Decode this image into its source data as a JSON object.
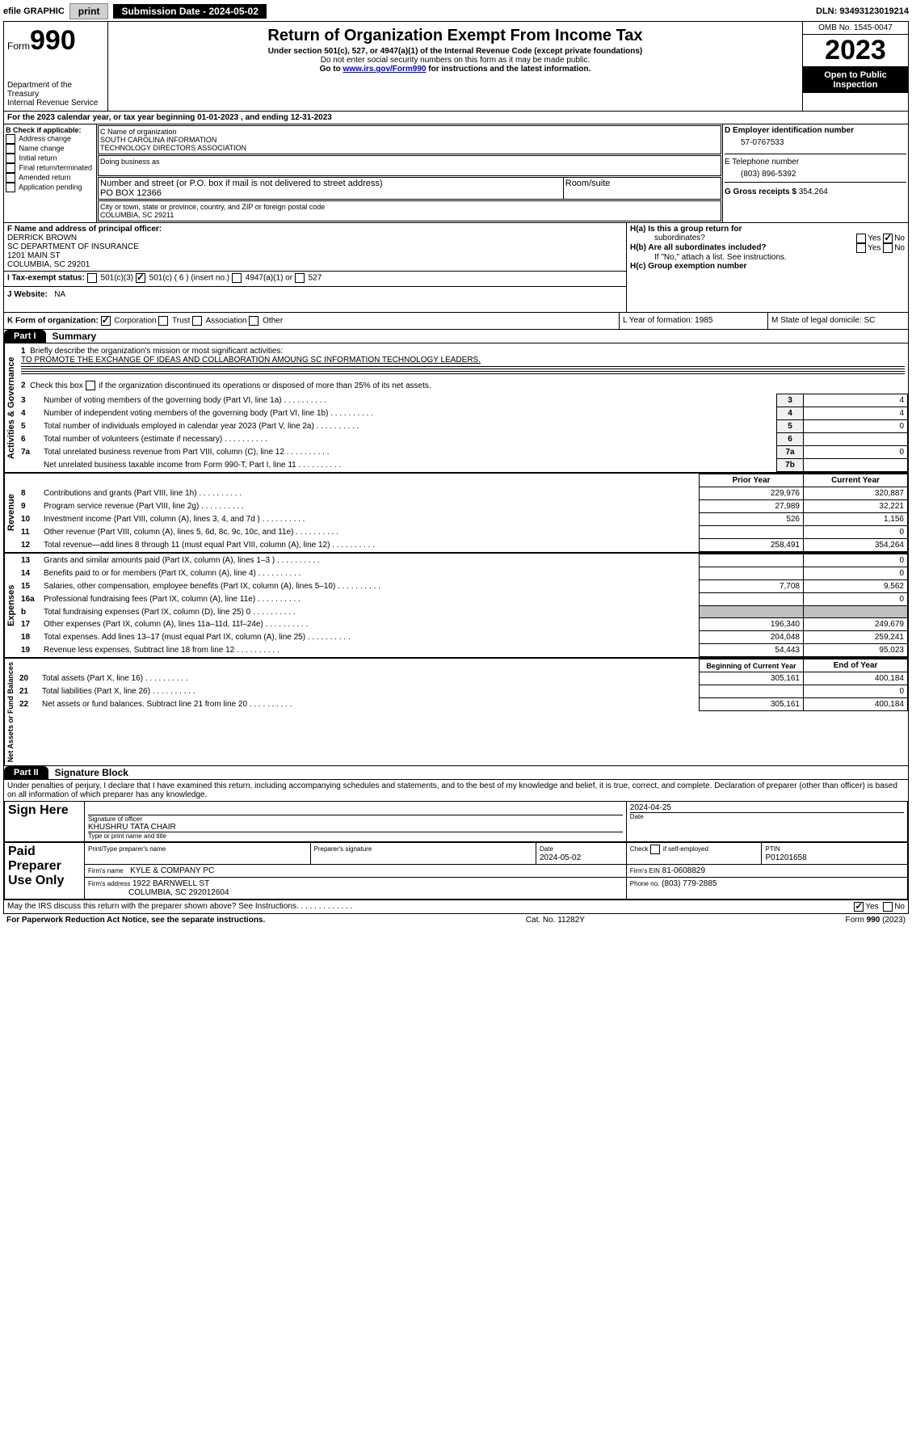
{
  "topbar": {
    "efile": "efile GRAPHIC",
    "print": "print",
    "submission": "Submission Date - 2024-05-02",
    "dln": "DLN: 93493123019214"
  },
  "header": {
    "form_word": "Form",
    "form_num": "990",
    "dept1": "Department of the Treasury",
    "dept2": "Internal Revenue Service",
    "title": "Return of Organization Exempt From Income Tax",
    "sub1": "Under section 501(c), 527, or 4947(a)(1) of the Internal Revenue Code (except private foundations)",
    "sub2": "Do not enter social security numbers on this form as it may be made public.",
    "sub3_pre": "Go to ",
    "sub3_link": "www.irs.gov/Form990",
    "sub3_post": " for instructions and the latest information.",
    "omb": "OMB No. 1545-0047",
    "year": "2023",
    "inspect": "Open to Public Inspection"
  },
  "line_a": "For the 2023 calendar year, or tax year beginning 01-01-2023    , and ending 12-31-2023",
  "box_b": {
    "label": "B Check if applicable:",
    "opts": [
      "Address change",
      "Name change",
      "Initial return",
      "Final return/terminated",
      "Amended return",
      "Application pending"
    ]
  },
  "box_c": {
    "name_label": "C Name of organization",
    "name1": "SOUTH CAROLINA INFORMATION",
    "name2": "TECHNOLOGY DIRECTORS ASSOCIATION",
    "dba": "Doing business as",
    "street_label": "Number and street (or P.O. box if mail is not delivered to street address)",
    "room_label": "Room/suite",
    "street": "PO BOX 12366",
    "city_label": "City or town, state or province, country, and ZIP or foreign postal code",
    "city": "COLUMBIA, SC  29211"
  },
  "box_d": {
    "label": "D Employer identification number",
    "val": "57-0767533"
  },
  "box_e": {
    "label": "E Telephone number",
    "val": "(803) 896-5392"
  },
  "box_g": {
    "label": "G Gross receipts $",
    "val": "354,264"
  },
  "box_f": {
    "label": "F  Name and address of principal officer:",
    "l1": "DERRICK BROWN",
    "l2": "SC DEPARTMENT OF INSURANCE",
    "l3": "1201 MAIN ST",
    "l4": "COLUMBIA, SC  29201"
  },
  "box_h": {
    "ha": "H(a)  Is this a group return for",
    "ha2": "subordinates?",
    "hb": "H(b)  Are all subordinates included?",
    "hb2": "If \"No,\" attach a list. See instructions.",
    "hc": "H(c)  Group exemption number",
    "yes": "Yes",
    "no": "No"
  },
  "box_i": {
    "label": "I   Tax-exempt status:",
    "b": "501(c) ( 6 ) (insert no.)",
    "a": "501(c)(3)",
    "c": "4947(a)(1) or",
    "d": "527"
  },
  "box_j": {
    "label": "J   Website:",
    "val": "NA"
  },
  "box_k": {
    "label": "K Form of organization:",
    "a": "Corporation",
    "b": "Trust",
    "c": "Association",
    "d": "Other"
  },
  "box_l": {
    "label": "L Year of formation: 1985"
  },
  "box_m": {
    "label": "M State of legal domicile: SC"
  },
  "part1": {
    "tab": "Part I",
    "title": "Summary"
  },
  "summary": {
    "l1a": "Briefly describe the organization's mission or most significant activities:",
    "l1b": "TO PROMOTE THE EXCHANGE OF IDEAS AND COLLABORATION AMOUNG SC INFORMATION TECHNOLOGY LEADERS.",
    "l2": "Check this box      if the organization discontinued its operations or disposed of more than 25% of its net assets.",
    "labels": {
      "gov": "Activities & Governance",
      "rev": "Revenue",
      "exp": "Expenses",
      "net": "Net Assets or Fund Balances"
    },
    "cols": {
      "prior": "Prior Year",
      "current": "Current Year",
      "begin": "Beginning of Current Year",
      "end": "End of Year"
    },
    "rows": [
      {
        "n": "3",
        "d": "Number of voting members of the governing body (Part VI, line 1a)",
        "k": "3",
        "v": "4"
      },
      {
        "n": "4",
        "d": "Number of independent voting members of the governing body (Part VI, line 1b)",
        "k": "4",
        "v": "4"
      },
      {
        "n": "5",
        "d": "Total number of individuals employed in calendar year 2023 (Part V, line 2a)",
        "k": "5",
        "v": "0"
      },
      {
        "n": "6",
        "d": "Total number of volunteers (estimate if necessary)",
        "k": "6",
        "v": ""
      },
      {
        "n": "7a",
        "d": "Total unrelated business revenue from Part VIII, column (C), line 12",
        "k": "7a",
        "v": "0"
      },
      {
        "n": "",
        "d": "Net unrelated business taxable income from Form 990-T, Part I, line 11",
        "k": "7b",
        "v": ""
      }
    ],
    "rev_rows": [
      {
        "n": "8",
        "d": "Contributions and grants (Part VIII, line 1h)",
        "p": "229,976",
        "c": "320,887"
      },
      {
        "n": "9",
        "d": "Program service revenue (Part VIII, line 2g)",
        "p": "27,989",
        "c": "32,221"
      },
      {
        "n": "10",
        "d": "Investment income (Part VIII, column (A), lines 3, 4, and 7d )",
        "p": "526",
        "c": "1,156"
      },
      {
        "n": "11",
        "d": "Other revenue (Part VIII, column (A), lines 5, 6d, 8c, 9c, 10c, and 11e)",
        "p": "",
        "c": "0"
      },
      {
        "n": "12",
        "d": "Total revenue—add lines 8 through 11 (must equal Part VIII, column (A), line 12)",
        "p": "258,491",
        "c": "354,264"
      }
    ],
    "exp_rows": [
      {
        "n": "13",
        "d": "Grants and similar amounts paid (Part IX, column (A), lines 1–3 )",
        "p": "",
        "c": "0"
      },
      {
        "n": "14",
        "d": "Benefits paid to or for members (Part IX, column (A), line 4)",
        "p": "",
        "c": "0"
      },
      {
        "n": "15",
        "d": "Salaries, other compensation, employee benefits (Part IX, column (A), lines 5–10)",
        "p": "7,708",
        "c": "9,562"
      },
      {
        "n": "16a",
        "d": "Professional fundraising fees (Part IX, column (A), line 11e)",
        "p": "",
        "c": "0"
      },
      {
        "n": "b",
        "d": "Total fundraising expenses (Part IX, column (D), line 25) 0",
        "p": "SHADE",
        "c": "SHADE"
      },
      {
        "n": "17",
        "d": "Other expenses (Part IX, column (A), lines 11a–11d, 11f–24e)",
        "p": "196,340",
        "c": "249,679"
      },
      {
        "n": "18",
        "d": "Total expenses. Add lines 13–17 (must equal Part IX, column (A), line 25)",
        "p": "204,048",
        "c": "259,241"
      },
      {
        "n": "19",
        "d": "Revenue less expenses. Subtract line 18 from line 12",
        "p": "54,443",
        "c": "95,023"
      }
    ],
    "net_rows": [
      {
        "n": "20",
        "d": "Total assets (Part X, line 16)",
        "p": "305,161",
        "c": "400,184"
      },
      {
        "n": "21",
        "d": "Total liabilities (Part X, line 26)",
        "p": "",
        "c": "0"
      },
      {
        "n": "22",
        "d": "Net assets or fund balances. Subtract line 21 from line 20",
        "p": "305,161",
        "c": "400,184"
      }
    ]
  },
  "part2": {
    "tab": "Part II",
    "title": "Signature Block"
  },
  "sig": {
    "perjury": "Under penalties of perjury, I declare that I have examined this return, including accompanying schedules and statements, and to the best of my knowledge and belief, it is true, correct, and complete. Declaration of preparer (other than officer) is based on all information of which preparer has any knowledge.",
    "sign_here": "Sign Here",
    "sig_officer": "Signature of officer",
    "date": "Date",
    "date_val": "2024-04-25",
    "name_title": "KHUSHRU TATA  CHAIR",
    "type_print": "Type or print name and title",
    "paid": "Paid Preparer Use Only",
    "prep_name": "Print/Type preparer's name",
    "prep_sig": "Preparer's signature",
    "prep_date": "Date",
    "prep_date_val": "2024-05-02",
    "check_self": "Check        if self-employed",
    "ptin_label": "PTIN",
    "ptin": "P01201658",
    "firm_name_label": "Firm's name",
    "firm_name": "KYLE & COMPANY PC",
    "firm_ein_label": "Firm's EIN",
    "firm_ein": "81-0608829",
    "firm_addr_label": "Firm's address",
    "firm_addr1": "1922 BARNWELL ST",
    "firm_addr2": "COLUMBIA, SC  292012604",
    "phone_label": "Phone no.",
    "phone": "(803) 779-2885",
    "discuss": "May the IRS discuss this return with the preparer shown above? See Instructions.",
    "yes": "Yes",
    "no": "No"
  },
  "footer": {
    "left": "For Paperwork Reduction Act Notice, see the separate instructions.",
    "mid": "Cat. No. 11282Y",
    "right": "Form 990 (2023)"
  }
}
